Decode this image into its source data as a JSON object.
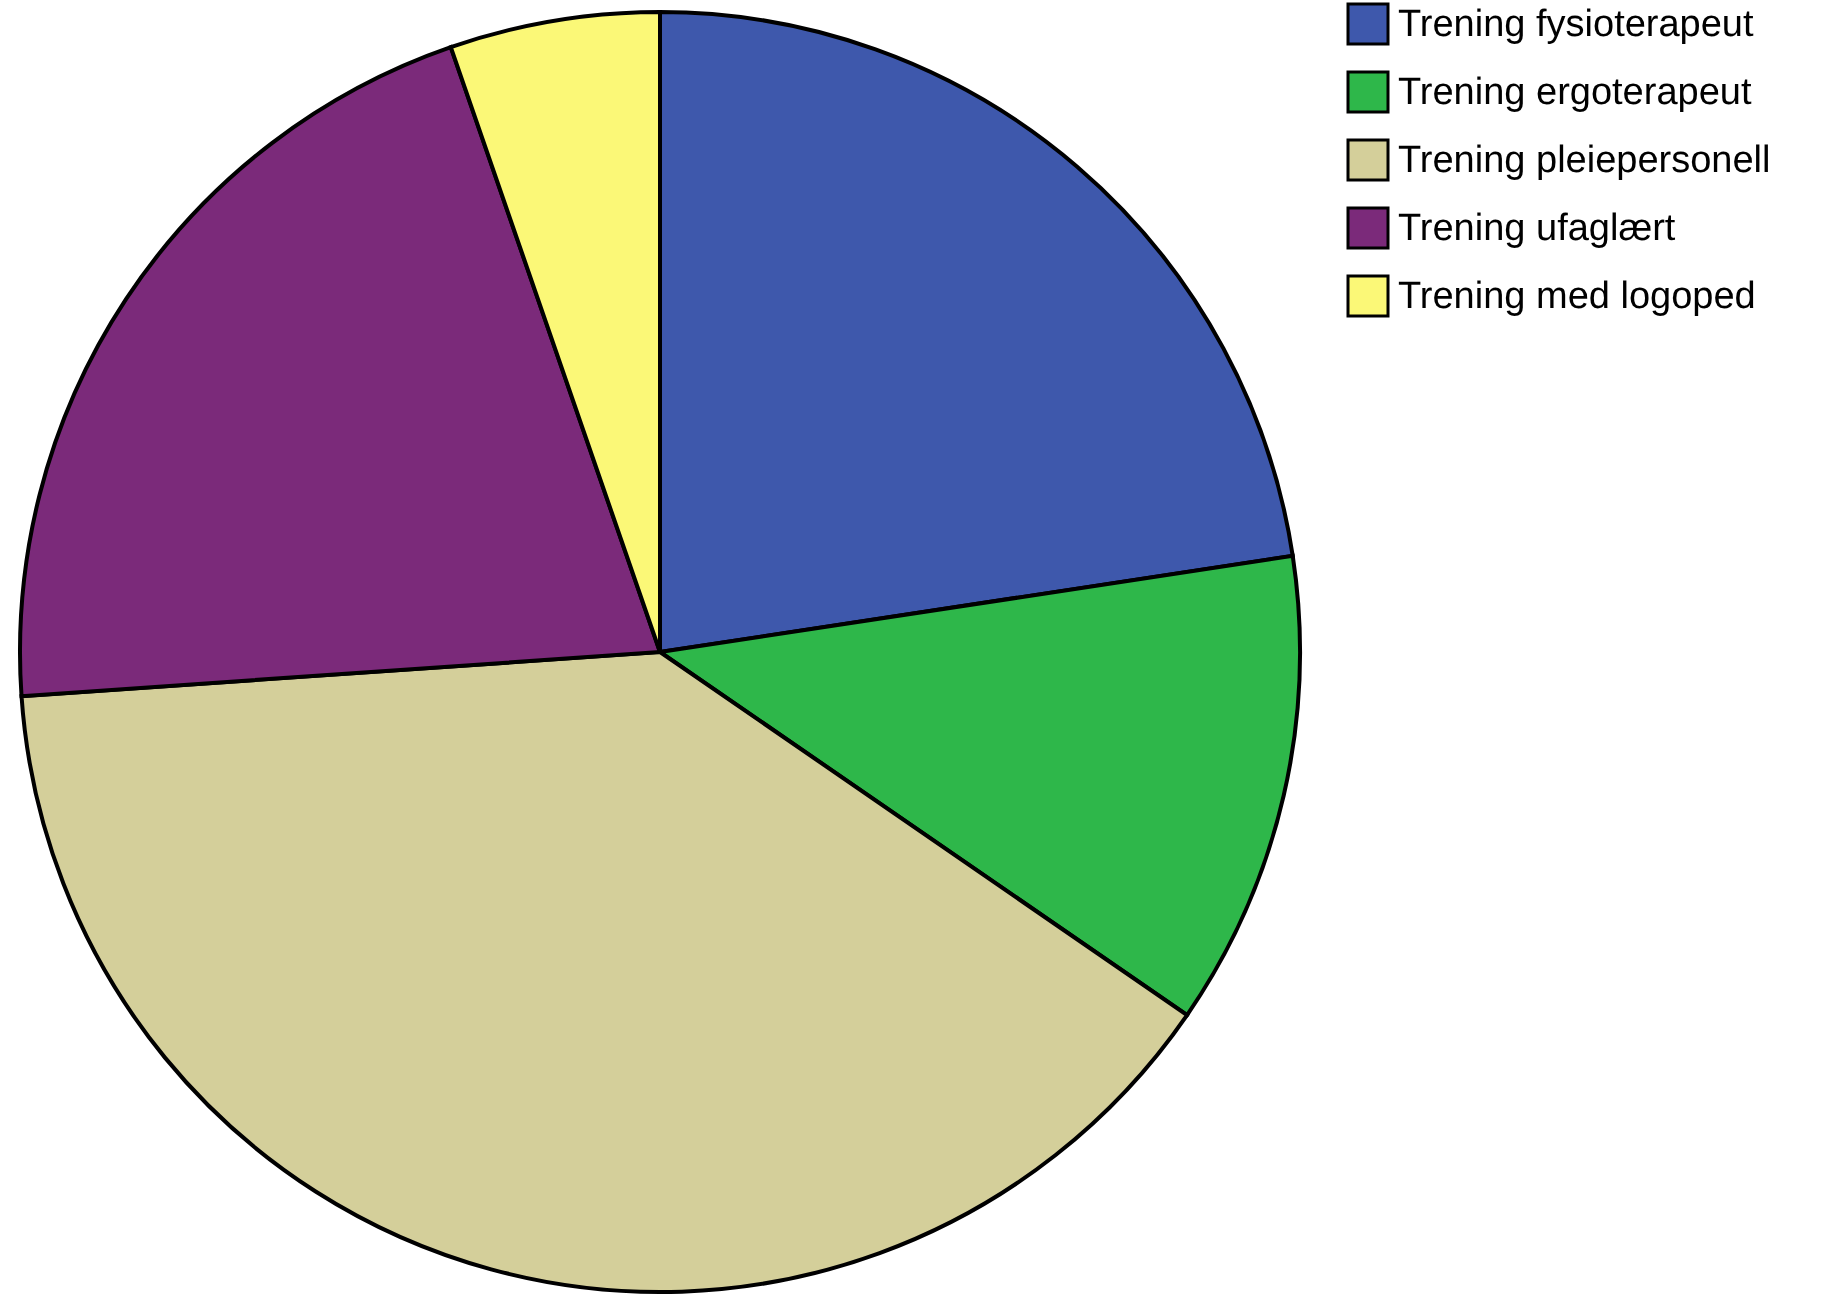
{
  "chart_data": {
    "type": "pie",
    "categories": [
      "Trening fysioterapeut",
      "Trening ergoterapeut",
      "Trening pleiepersonell",
      "Trening ufaglært",
      "Trening med logoped"
    ],
    "values": [
      22.6,
      12.0,
      39.3,
      20.8,
      5.3
    ],
    "colors": [
      "#3e58ac",
      "#2eb74a",
      "#d4cf9a",
      "#7b2a7a",
      "#fbf877"
    ],
    "legend": "top right"
  }
}
